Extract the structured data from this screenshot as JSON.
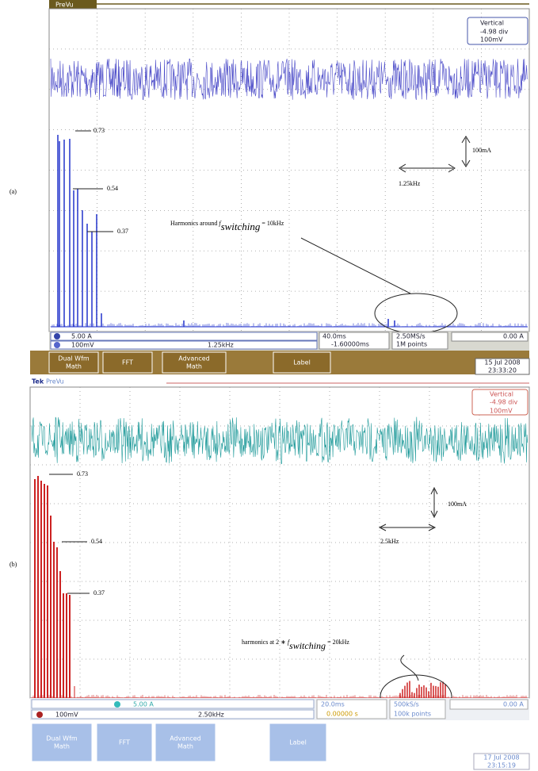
{
  "panel_a": {
    "label": "(a)",
    "top": "PreVu",
    "readout": {
      "title": "Vertical",
      "position": "-4.98 div",
      "scale": "100mV"
    },
    "peaks": [
      "0.73",
      "0.54",
      "0.37"
    ],
    "amplitude_scale": "100mA",
    "frequency_scale": "1.25kHz",
    "annotation": {
      "before": "Harmonics around ",
      "symbol": "f",
      "subscript": "switching",
      "after": " = 10kHz"
    },
    "status": {
      "ch1_scale": "5.00 A",
      "math_scale": "100mV",
      "math_span": "1.25kHz",
      "timebase": "40.0ms",
      "delay": "-1.60000ms",
      "sample_rate": "2.50MS/s",
      "record": "1M points",
      "trigger": "0.00 A"
    },
    "menu": [
      {
        "lines": [
          "Dual Wfm",
          "Math"
        ]
      },
      {
        "lines": [
          "FFT"
        ]
      },
      {
        "lines": [
          "Advanced",
          "Math"
        ]
      },
      {
        "lines": [
          "Label"
        ]
      }
    ],
    "date": "15 Jul 2008",
    "time": "23:33:20"
  },
  "panel_b": {
    "label": "(b)",
    "brand": "Tek",
    "top": "PreVu",
    "readout": {
      "title": "Vertical",
      "position": "-4.98 div",
      "scale": "100mV"
    },
    "peaks": [
      "0.73",
      "0.54",
      "0.37"
    ],
    "amplitude_scale": "100mA",
    "frequency_scale": "2.5kHz",
    "annotation": {
      "before": "harmonics at 2 ∗ ",
      "symbol": "f",
      "subscript": "switching",
      "after": " = 20kHz"
    },
    "status": {
      "ch2_scale": "5.00 A",
      "math_scale": "100mV",
      "math_span": "2.50kHz",
      "timebase": "20.0ms",
      "delay": "0.00000 s",
      "sample_rate": "500kS/s",
      "record": "100k points",
      "trigger": "0.00 A"
    },
    "menu": [
      {
        "lines": [
          "Dual Wfm",
          "Math"
        ]
      },
      {
        "lines": [
          "FFT"
        ]
      },
      {
        "lines": [
          "Advanced",
          "Math"
        ]
      },
      {
        "lines": [
          "Label"
        ]
      }
    ],
    "date": "17 Jul 2008",
    "time": "23:15:19"
  }
}
